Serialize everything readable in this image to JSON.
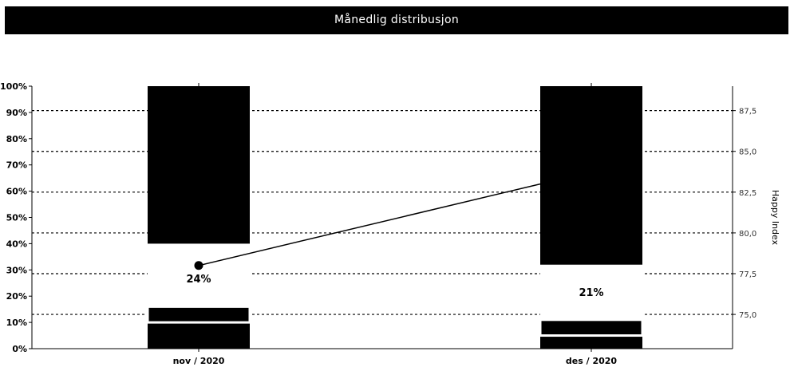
{
  "chart_data": {
    "type": "bar",
    "title": "Månedlig distribusjon",
    "categories": [
      "nov / 2020",
      "des / 2020"
    ],
    "stacked_segments": [
      {
        "values": [
          10,
          5
        ]
      },
      {
        "values": [
          6,
          6
        ]
      },
      {
        "values": [
          24,
          21
        ]
      },
      {
        "values": [
          60,
          68
        ]
      }
    ],
    "segment_colors": [
      "#000000",
      "#000000",
      "#ffffff",
      "#000000"
    ],
    "data_labels": [
      "24%",
      "21%"
    ],
    "y_left": {
      "ticks": [
        "0%",
        "10%",
        "20%",
        "30%",
        "40%",
        "50%",
        "60%",
        "70%",
        "80%",
        "90%",
        "100%"
      ],
      "ylim": [
        0,
        100
      ]
    },
    "line_series": {
      "values": [
        78.0,
        83.0
      ],
      "marker": [
        true,
        false
      ]
    },
    "y_right": {
      "label": "Happy Index",
      "ticks": [
        "75,0",
        "77,5",
        "80,0",
        "82,5",
        "85,0",
        "87,5"
      ],
      "tick_values": [
        75.0,
        77.5,
        80.0,
        82.5,
        85.0,
        87.5
      ],
      "ylim": [
        72.9,
        89
      ]
    },
    "grid": "dotted-horizontal-at-right-ticks",
    "legend": "none"
  }
}
